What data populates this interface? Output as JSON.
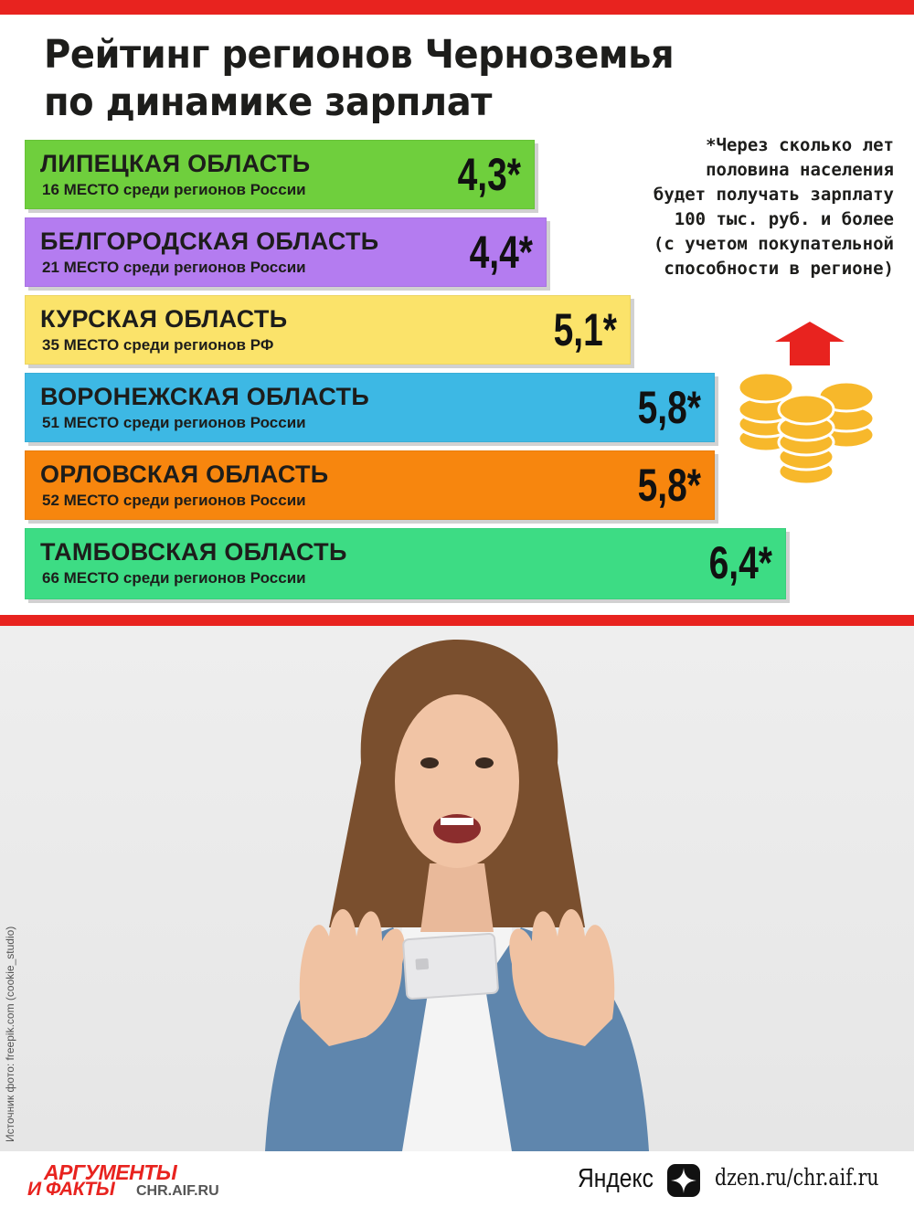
{
  "chart_data": {
    "type": "bar",
    "title_lines": [
      "Рейтинг регионов Черноземья",
      "по динамике зарплат"
    ],
    "value_suffix": "*",
    "series": [
      {
        "values": [
          4.3,
          4.4,
          5.1,
          5.8,
          5.8,
          6.4
        ]
      }
    ],
    "items": [
      {
        "name": "ЛИПЕЦКАЯ ОБЛАСТЬ",
        "rank": "16 МЕСТО среди регионов России",
        "value": 4.3,
        "label": "4,3*",
        "color": "#6fcf3d"
      },
      {
        "name": "БЕЛГОРОДСКАЯ ОБЛАСТЬ",
        "rank": "21 МЕСТО среди регионов России",
        "value": 4.4,
        "label": "4,4*",
        "color": "#b47cf0"
      },
      {
        "name": "КУРСКАЯ ОБЛАСТЬ",
        "rank": "35 МЕСТО среди регионов РФ",
        "value": 5.1,
        "label": "5,1*",
        "color": "#fbe36a"
      },
      {
        "name": "ВОРОНЕЖСКАЯ ОБЛАСТЬ",
        "rank": "51 МЕСТО среди регионов России",
        "value": 5.8,
        "label": "5,8*",
        "color": "#3db8e4"
      },
      {
        "name": "ОРЛОВСКАЯ ОБЛАСТЬ",
        "rank": "52 МЕСТО среди регионов России",
        "value": 5.8,
        "label": "5,8*",
        "color": "#f7860e"
      },
      {
        "name": "ТАМБОВСКАЯ ОБЛАСТЬ",
        "rank": "66 МЕСТО среди регионов России",
        "value": 6.4,
        "label": "6,4*",
        "color": "#3ddc84"
      }
    ],
    "footnote_lines": [
      "*Через сколько лет",
      "половина населения",
      "будет получать зарплату",
      "100 тыс. руб. и более",
      "(с учетом покупательной",
      "способности в регионе)"
    ],
    "grid": false,
    "legend": "none"
  },
  "photo": {
    "credit": "Источник фото: freepik.com (cookie_studio)"
  },
  "footer": {
    "logo_top": "АРГУМЕНТЫ",
    "logo_bottom": "И ФАКТЫ",
    "logo_url": "CHR.AIF.RU",
    "yandex": "Яндекс",
    "dzen_url": "dzen.ru/chr.aif.ru"
  },
  "colors": {
    "accent": "#e8231f",
    "coin": "#f7b82b",
    "arrow": "#e8231f"
  },
  "icons": [
    "stacked-coins-icon",
    "up-arrow-icon",
    "zen-star-icon"
  ]
}
